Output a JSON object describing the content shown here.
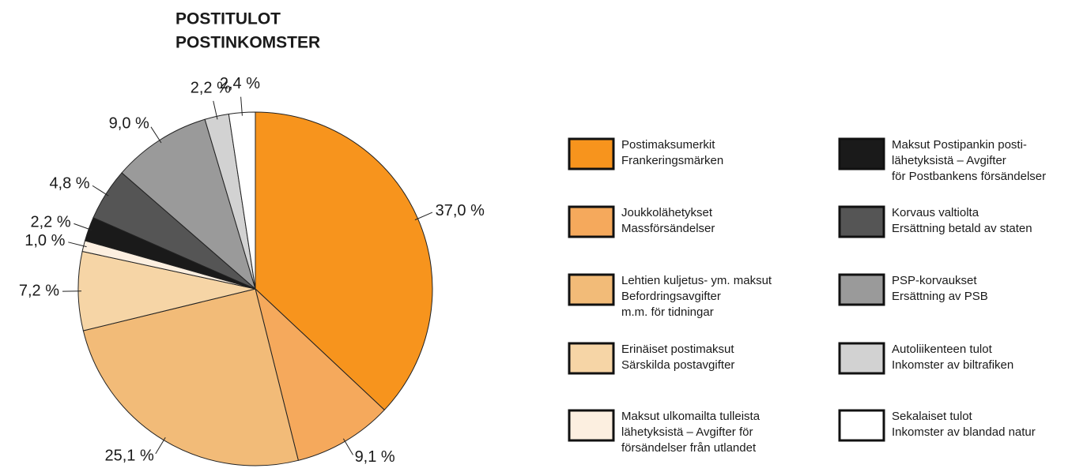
{
  "chart_data": {
    "type": "pie",
    "title": "POSTITULOT",
    "subtitle": "POSTINKOMSTER",
    "categories": [
      "Postimaksumerkit\nFrankeringsmärken",
      "Joukkolähetykset\nMassförsändelser",
      "Lehtien kuljetus- ym. maksut\nBefordringsavgifter\nm.m. för tidningar",
      "Erinäiset postimaksut\nSärskilda postavgifter",
      "Maksut ulkomailta tulleista\nlähetyksistä – Avgifter för\nförsändelser från utlandet",
      "Maksut Postipankin posti-\nlähetyksistä – Avgifter\nför Postbankens försändelser",
      "Korvaus valtiolta\nErsättning betald av staten",
      "PSP-korvaukset\nErsättning av PSB",
      "Autoliikenteen tulot\nInkomster av biltrafiken",
      "Sekalaiset tulot\nInkomster av blandad natur"
    ],
    "values": [
      37.0,
      9.1,
      25.1,
      7.2,
      1.0,
      2.2,
      4.8,
      9.0,
      2.2,
      2.4
    ],
    "value_labels": [
      "37,0 %",
      "9,1 %",
      "25,1 %",
      "7,2 %",
      "1,0 %",
      "2,2 %",
      "4,8 %",
      "9,0 %",
      "2,2 %",
      "2,4 %"
    ],
    "colors": [
      "#f7941d",
      "#f5a95c",
      "#f2bb78",
      "#f6d5a6",
      "#fcefe0",
      "#1a1a1a",
      "#555555",
      "#9a9a9a",
      "#d2d2d2",
      "#ffffff"
    ]
  }
}
